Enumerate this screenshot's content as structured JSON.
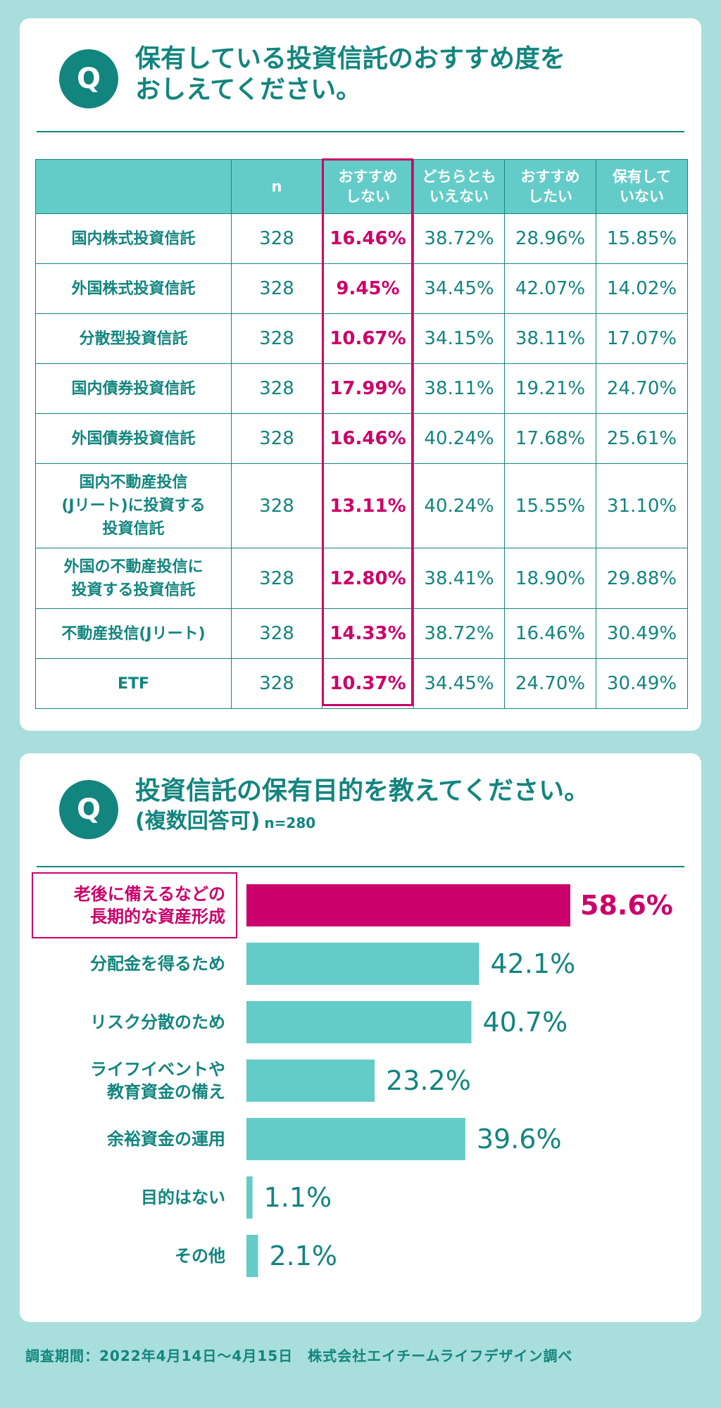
{
  "colors": {
    "accent": "#12857e",
    "highlight": "#cc006a",
    "bar": "#63ccc8",
    "background": "#a8dedb"
  },
  "section1": {
    "badge": "Q",
    "title_line1": "保有している投資信託のおすすめ度を",
    "title_line2": "おしえてください。",
    "headers": [
      "",
      "n",
      "おすすめ\nしない",
      "どちらとも\nいえない",
      "おすすめ\nしたい",
      "保有して\nいない"
    ],
    "rows": [
      {
        "label": "国内株式投資信託",
        "n": "328",
        "values": [
          "16.46%",
          "38.72%",
          "28.96%",
          "15.85%"
        ]
      },
      {
        "label": "外国株式投資信託",
        "n": "328",
        "values": [
          "9.45%",
          "34.45%",
          "42.07%",
          "14.02%"
        ]
      },
      {
        "label": "分散型投資信託",
        "n": "328",
        "values": [
          "10.67%",
          "34.15%",
          "38.11%",
          "17.07%"
        ]
      },
      {
        "label": "国内債券投資信託",
        "n": "328",
        "values": [
          "17.99%",
          "38.11%",
          "19.21%",
          "24.70%"
        ]
      },
      {
        "label": "外国債券投資信託",
        "n": "328",
        "values": [
          "16.46%",
          "40.24%",
          "17.68%",
          "25.61%"
        ]
      },
      {
        "label": "国内不動産投信\n(Jリート)に投資する\n投資信託",
        "n": "328",
        "values": [
          "13.11%",
          "40.24%",
          "15.55%",
          "31.10%"
        ]
      },
      {
        "label": "外国の不動産投信に\n投資する投資信託",
        "n": "328",
        "values": [
          "12.80%",
          "38.41%",
          "18.90%",
          "29.88%"
        ]
      },
      {
        "label": "不動産投信(Jリート)",
        "n": "328",
        "values": [
          "14.33%",
          "38.72%",
          "16.46%",
          "30.49%"
        ]
      },
      {
        "label": "ETF",
        "n": "328",
        "values": [
          "10.37%",
          "34.45%",
          "24.70%",
          "30.49%"
        ]
      }
    ]
  },
  "section2": {
    "badge": "Q",
    "title_line1": "投資信託の保有目的を教えてください。",
    "title_line2": "(複数回答可)",
    "n_note": "n=280"
  },
  "chart_data": {
    "type": "bar",
    "orientation": "horizontal",
    "categories": [
      "老後に備えるなどの\n長期的な資産形成",
      "分配金を得るため",
      "リスク分散のため",
      "ライフイベントや\n教育資金の備え",
      "余裕資金の運用",
      "目的はない",
      "その他"
    ],
    "values": [
      58.6,
      42.1,
      40.7,
      23.2,
      39.6,
      1.1,
      2.1
    ],
    "value_labels": [
      "58.6%",
      "42.1%",
      "40.7%",
      "23.2%",
      "39.6%",
      "1.1%",
      "2.1%"
    ],
    "highlight_index": 0,
    "xlim": [
      0,
      58.6
    ]
  },
  "footer": "調査期間：2022年4月14日〜4月15日　株式会社エイチームライフデザイン調べ"
}
